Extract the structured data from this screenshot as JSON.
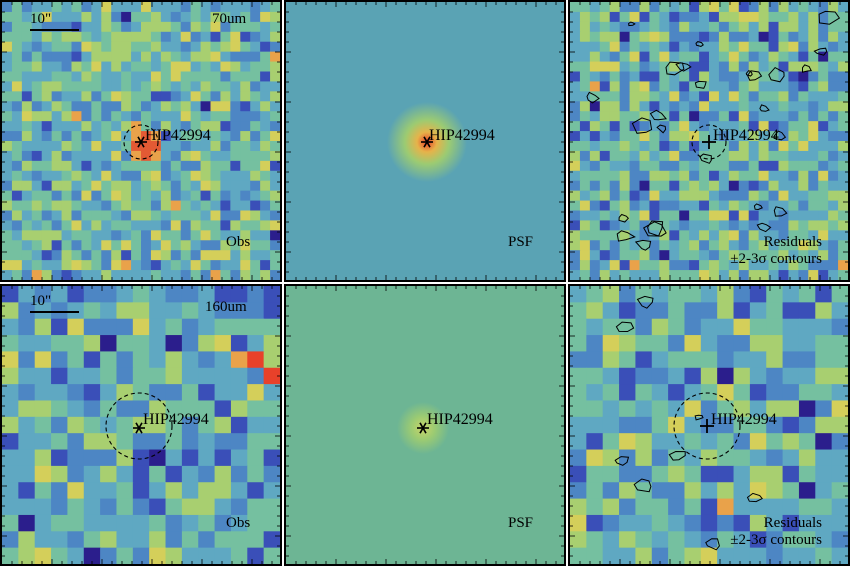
{
  "panels": [
    {
      "band": "70um",
      "kind": "Obs",
      "source": "HIP42994",
      "scalebar": "10\"",
      "marker": "star",
      "circle": true,
      "contours": false
    },
    {
      "band": "",
      "kind": "PSF",
      "source": "HIP42994",
      "scalebar": "",
      "marker": "star",
      "circle": false,
      "contours": false
    },
    {
      "band": "",
      "kind": "Residuals",
      "kind2": "±2-3σ contours",
      "source": "HIP42994",
      "scalebar": "",
      "marker": "plus",
      "circle": true,
      "contours": true
    },
    {
      "band": "160um",
      "kind": "Obs",
      "source": "HIP42994",
      "scalebar": "10\"",
      "marker": "star",
      "circle": true,
      "contours": false
    },
    {
      "band": "",
      "kind": "PSF",
      "source": "HIP42994",
      "scalebar": "",
      "marker": "star",
      "circle": false,
      "contours": false
    },
    {
      "band": "",
      "kind": "Residuals",
      "kind2": "±2-3σ contours",
      "source": "HIP42994",
      "scalebar": "",
      "marker": "plus",
      "circle": true,
      "contours": true
    }
  ],
  "colors": {
    "psf_bg_top": "#5aa3b4",
    "psf_bg_bottom": "#6db594",
    "hot": "#e8412a",
    "noise_palette": [
      "#2b1e8c",
      "#3a4fb8",
      "#4d86c4",
      "#5fa8c2",
      "#75c0a0",
      "#a8cf70",
      "#d4cf5a",
      "#e9a24a",
      "#e35a34"
    ]
  }
}
